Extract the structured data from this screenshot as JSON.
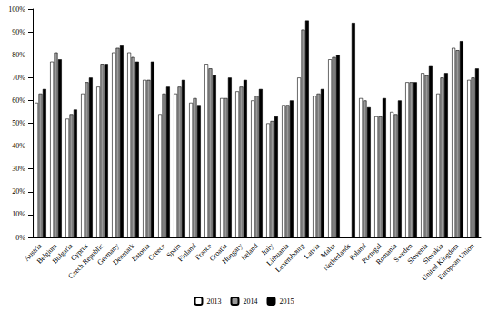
{
  "chart_data": {
    "type": "bar",
    "categories": [
      "Austria",
      "Belgium",
      "Bulgaria",
      "Cyprus",
      "Czech Republic",
      "Germany",
      "Denmark",
      "Estonia",
      "Greece",
      "Spain",
      "Finland",
      "France",
      "Croatia",
      "Hungary",
      "Ireland",
      "Italy",
      "Lithuania",
      "Luxembourg",
      "Latvia",
      "Malta",
      "Netherlands",
      "Poland",
      "Portugal",
      "Romania",
      "Sweden",
      "Slovenia",
      "Slovakia",
      "United Kingdom",
      "European Union"
    ],
    "series": [
      {
        "name": "2013",
        "color": "#ffffff",
        "values": [
          59,
          77,
          52,
          63,
          66,
          81,
          81,
          69,
          54,
          63,
          59,
          76,
          61,
          64,
          60,
          50,
          58,
          70,
          62,
          78,
          null,
          61,
          53,
          55,
          68,
          72,
          63,
          83,
          69
        ]
      },
      {
        "name": "2014",
        "color": "#999999",
        "values": [
          63,
          81,
          54,
          68,
          76,
          83,
          79,
          69,
          63,
          66,
          61,
          74,
          61,
          66,
          62,
          51,
          58,
          91,
          63,
          79,
          null,
          60,
          53,
          54,
          68,
          71,
          70,
          82,
          70
        ]
      },
      {
        "name": "2015",
        "color": "#000000",
        "values": [
          65,
          78,
          56,
          70,
          76,
          84,
          77,
          77,
          66,
          69,
          58,
          71,
          70,
          69,
          65,
          53,
          60,
          95,
          65,
          80,
          94,
          57,
          61,
          60,
          68,
          75,
          72,
          86,
          74
        ]
      }
    ],
    "ylim": [
      0,
      100
    ],
    "yticks": [
      {
        "value": 0,
        "label": "0%"
      },
      {
        "value": 10,
        "label": "10%"
      },
      {
        "value": 20,
        "label": "20%"
      },
      {
        "value": 30,
        "label": "30%"
      },
      {
        "value": 40,
        "label": "40%"
      },
      {
        "value": 50,
        "label": "50%"
      },
      {
        "value": 60,
        "label": "60%"
      },
      {
        "value": 70,
        "label": "70%"
      },
      {
        "value": 80,
        "label": "80%"
      },
      {
        "value": 90,
        "label": "90%"
      },
      {
        "value": 100,
        "label": "100%"
      }
    ],
    "grid": false,
    "legend": "bottom"
  }
}
